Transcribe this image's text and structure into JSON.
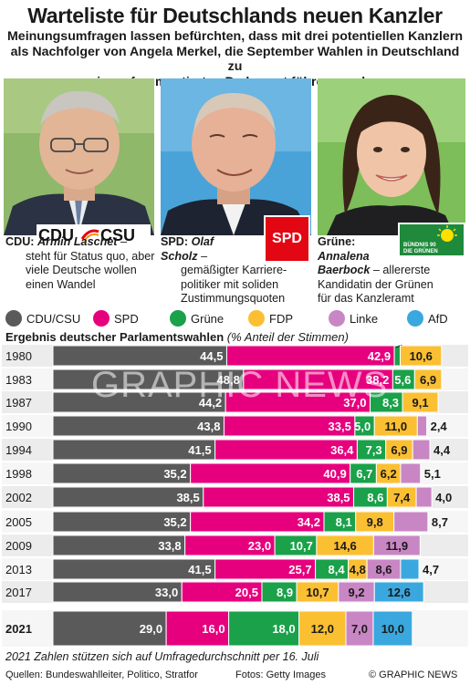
{
  "title": "Warteliste für Deutschlands neuen Kanzler",
  "subtitle_lines": [
    "Meinungsumfragen lassen befürchten, dass mit drei potentiellen Kanzlern",
    "als Nachfolger von Angela Merkel, die September Wahlen in Deutschland zu",
    "einem fragmentierten Parlament führen werden"
  ],
  "candidates": [
    {
      "party_label": "CDU:",
      "name": "Armin Laschet",
      "logo_text": "CDU CSU",
      "desc_lines": [
        "steht für Status quo, aber",
        "viele Deutsche wollen",
        "einen Wandel"
      ],
      "after_name": " –"
    },
    {
      "party_label": "SPD:",
      "name_lines": [
        "Olaf",
        "Scholz"
      ],
      "logo_text": "SPD",
      "desc_lines": [
        "gemäßigter Karriere-",
        "politiker mit soliden",
        "Zustimmungsquoten"
      ],
      "after_name": " –"
    },
    {
      "party_label": "Grüne:",
      "name_lines": [
        "Annalena",
        "Baerbock"
      ],
      "logo_text": "BÜNDNIS 90 DIE GRÜNEN",
      "desc_lines": [
        "allererste",
        "Kandidatin der Grünen",
        "für das Kanzleramt"
      ],
      "after_name": " – "
    }
  ],
  "legend": [
    {
      "label": "CDU/CSU",
      "color": "#5a5a5a"
    },
    {
      "label": "SPD",
      "color": "#e6007e"
    },
    {
      "label": "Grüne",
      "color": "#1aa14a"
    },
    {
      "label": "FDP",
      "color": "#fbbf32"
    },
    {
      "label": "Linke",
      "color": "#c986c4"
    },
    {
      "label": "AfD",
      "color": "#3aa8de"
    }
  ],
  "chart_title": "Ergebnis deutscher Parlamentswahlen",
  "chart_unit": "(% Anteil der Stimmen)",
  "watermark": "GRAPHIC NEWS",
  "note": "2021 Zahlen stützen sich auf Umfragedurchschnitt per 16. Juli",
  "footer": {
    "sources": "Quellen: Bundeswahlleiter, Politico, Stratfor",
    "photos": "Fotos: Getty Images",
    "copyright": "© GRAPHIC NEWS"
  },
  "chart_data": {
    "type": "bar",
    "stacked": true,
    "orientation": "horizontal",
    "categories": [
      "1980",
      "1983",
      "1987",
      "1990",
      "1994",
      "1998",
      "2002",
      "2005",
      "2009",
      "2013",
      "2017",
      "2021"
    ],
    "series": [
      {
        "name": "CDU/CSU",
        "color": "#5a5a5a",
        "values": [
          44.5,
          48.8,
          44.2,
          43.8,
          41.5,
          35.2,
          38.5,
          35.2,
          33.8,
          41.5,
          33.0,
          29.0
        ],
        "labels": [
          "44,5",
          "48,8",
          "44,2",
          "43,8",
          "41,5",
          "35,2",
          "38,5",
          "35,2",
          "33,8",
          "41,5",
          "33,0",
          "29,0"
        ]
      },
      {
        "name": "SPD",
        "color": "#e6007e",
        "values": [
          42.9,
          38.2,
          37.0,
          33.5,
          36.4,
          40.9,
          38.5,
          34.2,
          23.0,
          25.7,
          20.5,
          16.0
        ],
        "labels": [
          "42,9",
          "38,2",
          "37,0",
          "33,5",
          "36,4",
          "40,9",
          "38,5",
          "34,2",
          "23,0",
          "25,7",
          "20,5",
          "16,0"
        ]
      },
      {
        "name": "Grüne",
        "color": "#1aa14a",
        "values": [
          1.5,
          5.6,
          8.3,
          5.0,
          7.3,
          6.7,
          8.6,
          8.1,
          10.7,
          8.4,
          8.9,
          18.0
        ],
        "labels": [
          "1,5",
          "5,6",
          "8,3",
          "5,0",
          "7,3",
          "6,7",
          "8,6",
          "8,1",
          "10,7",
          "8,4",
          "8,9",
          "18,0"
        ]
      },
      {
        "name": "FDP",
        "color": "#fbbf32",
        "values": [
          10.6,
          6.9,
          9.1,
          11.0,
          6.9,
          6.2,
          7.4,
          9.8,
          14.6,
          4.8,
          10.7,
          12.0
        ],
        "labels": [
          "10,6",
          "6,9",
          "9,1",
          "11,0",
          "6,9",
          "6,2",
          "7,4",
          "9,8",
          "14,6",
          "4,8",
          "10,7",
          "12,0"
        ]
      },
      {
        "name": "Linke",
        "color": "#c986c4",
        "values": [
          0,
          0,
          0,
          2.4,
          4.4,
          5.1,
          4.0,
          8.7,
          11.9,
          8.6,
          9.2,
          7.0
        ],
        "labels": [
          "",
          "",
          "",
          "2,4",
          "4,4",
          "5,1",
          "4,0",
          "8,7",
          "11,9",
          "8,6",
          "9,2",
          "7,0"
        ]
      },
      {
        "name": "AfD",
        "color": "#3aa8de",
        "values": [
          0,
          0,
          0,
          0,
          0,
          0,
          0,
          0,
          0,
          4.7,
          12.6,
          10.0
        ],
        "labels": [
          "",
          "",
          "",
          "",
          "",
          "",
          "",
          "",
          "",
          "4,7",
          "12,6",
          "10,0"
        ]
      }
    ],
    "xlim": [
      0,
      100
    ]
  }
}
